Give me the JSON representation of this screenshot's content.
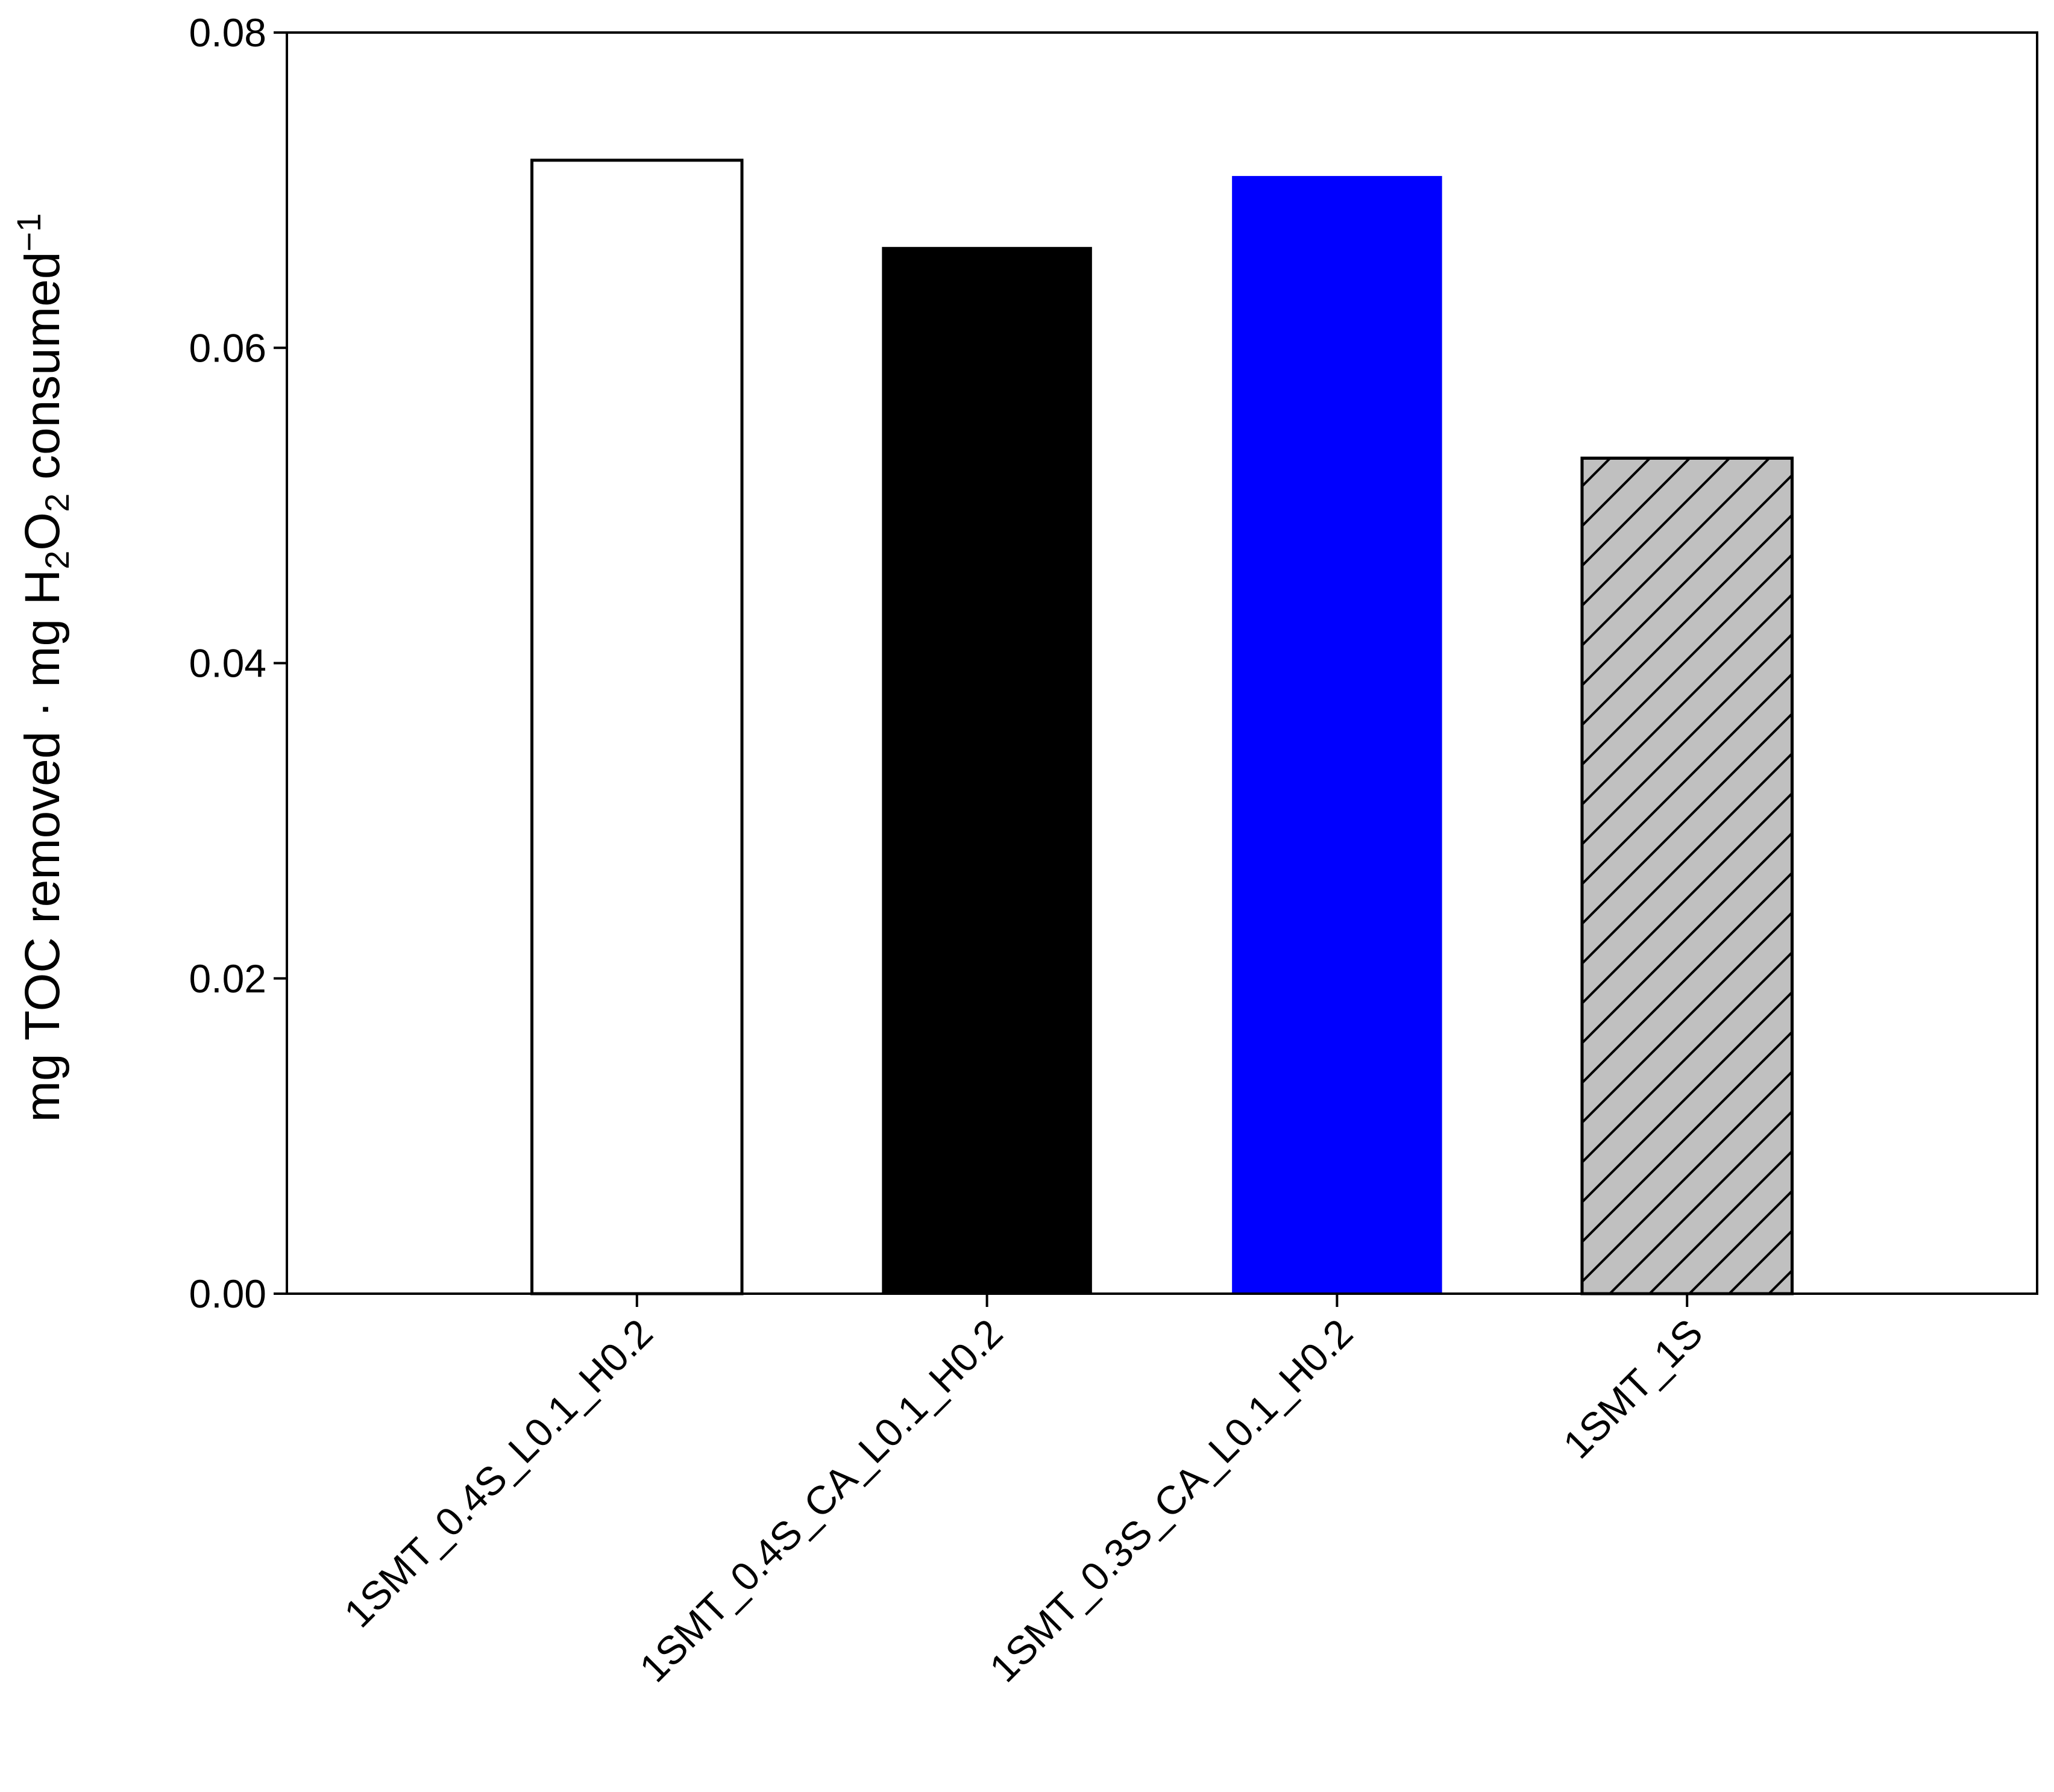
{
  "chart_data": {
    "type": "bar",
    "ylabel_parts": [
      {
        "text": "mg TOC removed · mg H"
      },
      {
        "text": "2",
        "sub": true
      },
      {
        "text": "O"
      },
      {
        "text": "2",
        "sub": true
      },
      {
        "text": " consumed"
      },
      {
        "text": "−1",
        "sup": true
      }
    ],
    "categories": [
      "1SMT_0.4S_L0.1_H0.2",
      "1SMT_0.4S_CA_L0.1_H0.2",
      "1SMT_0.3S_CA_L0.1_H0.2",
      "1SMT_1S"
    ],
    "values": [
      0.0719,
      0.0664,
      0.0709,
      0.053
    ],
    "colors": [
      "#ffffff",
      "#000000",
      "#0000ff",
      "#c0c0c0"
    ],
    "edges": [
      true,
      false,
      false,
      true
    ],
    "hatches": [
      false,
      false,
      false,
      true
    ],
    "ylim": [
      0,
      0.08
    ],
    "yticks": [
      {
        "value": 0,
        "label": "0.00"
      },
      0.02,
      0.04,
      0.06,
      0.08
    ],
    "grid": false
  }
}
